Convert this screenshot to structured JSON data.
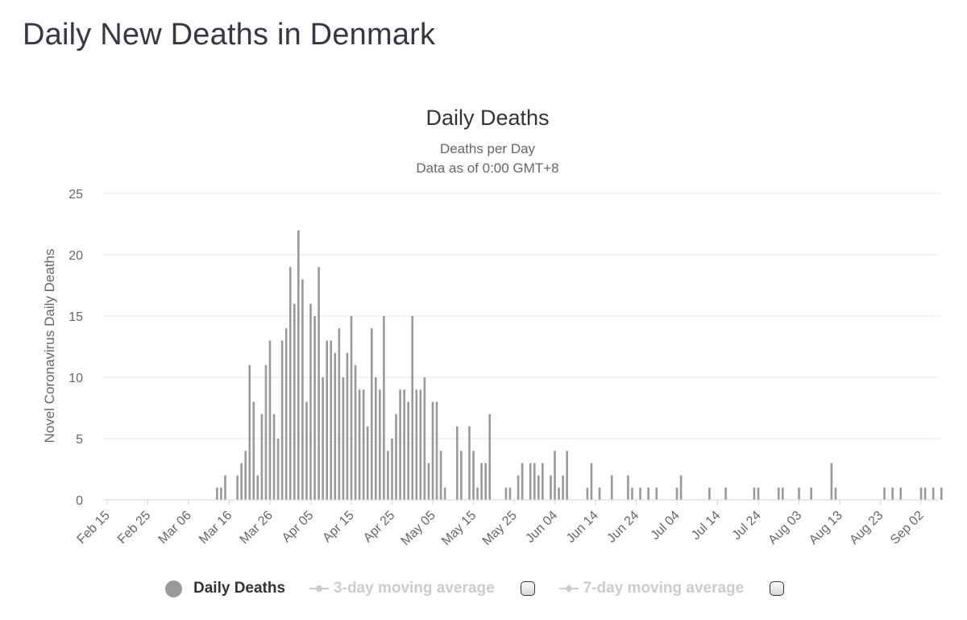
{
  "page": {
    "title": "Daily New Deaths in Denmark"
  },
  "legend": {
    "items": [
      {
        "label": "Daily Deaths",
        "active": true
      },
      {
        "label": "3-day moving average",
        "active": false
      },
      {
        "label": "7-day moving average",
        "active": false
      }
    ]
  },
  "colors": {
    "bar": "#999999",
    "grid": "#e6e6e6",
    "axis_line": "#ccd6eb",
    "text": "#666666",
    "title": "#333333",
    "inactive": "#cccccc"
  },
  "chart_data": {
    "type": "bar",
    "title": "Daily Deaths",
    "subtitle": [
      "Deaths per Day",
      "Data as of 0:00 GMT+8"
    ],
    "ylabel": "Novel Coronavirus Daily Deaths",
    "xlabel": "",
    "ylim": [
      0,
      25
    ],
    "yticks": [
      0,
      5,
      10,
      15,
      20,
      25
    ],
    "grid": true,
    "start_date": "Feb 15",
    "xtick_labels": [
      "Feb 15",
      "Feb 25",
      "Mar 06",
      "Mar 16",
      "Mar 26",
      "Apr 05",
      "Apr 15",
      "Apr 25",
      "May 05",
      "May 15",
      "May 25",
      "Jun 04",
      "Jun 14",
      "Jun 24",
      "Jul 04",
      "Jul 14",
      "Jul 24",
      "Aug 03",
      "Aug 13",
      "Aug 23",
      "Sep 02"
    ],
    "tick_interval_days": 10,
    "values": [
      0,
      0,
      0,
      0,
      0,
      0,
      0,
      0,
      0,
      0,
      0,
      0,
      0,
      0,
      0,
      0,
      0,
      0,
      0,
      0,
      0,
      0,
      0,
      0,
      0,
      0,
      0,
      1,
      1,
      2,
      0,
      0,
      2,
      3,
      4,
      11,
      8,
      2,
      7,
      11,
      13,
      7,
      5,
      13,
      14,
      19,
      16,
      22,
      18,
      8,
      16,
      15,
      19,
      10,
      13,
      13,
      12,
      14,
      10,
      12,
      15,
      11,
      9,
      9,
      6,
      14,
      10,
      9,
      15,
      4,
      5,
      7,
      9,
      9,
      8,
      15,
      9,
      9,
      10,
      3,
      8,
      8,
      4,
      1,
      0,
      0,
      6,
      4,
      0,
      6,
      4,
      1,
      3,
      3,
      7,
      0,
      0,
      0,
      1,
      1,
      0,
      2,
      3,
      0,
      3,
      3,
      2,
      3,
      0,
      2,
      4,
      1,
      2,
      4,
      0,
      0,
      0,
      0,
      1,
      3,
      0,
      1,
      0,
      0,
      2,
      0,
      0,
      0,
      2,
      1,
      0,
      1,
      0,
      1,
      0,
      1,
      0,
      0,
      0,
      0,
      1,
      2,
      0,
      0,
      0,
      0,
      0,
      0,
      1,
      0,
      0,
      0,
      1,
      0,
      0,
      0,
      0,
      0,
      0,
      1,
      1,
      0,
      0,
      0,
      0,
      1,
      1,
      0,
      0,
      0,
      1,
      0,
      0,
      1,
      0,
      0,
      0,
      0,
      3,
      1,
      0,
      0,
      0,
      0,
      0,
      0,
      0,
      0,
      0,
      0,
      0,
      1,
      0,
      1,
      0,
      1,
      0,
      0,
      0,
      0,
      1,
      1,
      0,
      1,
      0,
      1
    ]
  }
}
